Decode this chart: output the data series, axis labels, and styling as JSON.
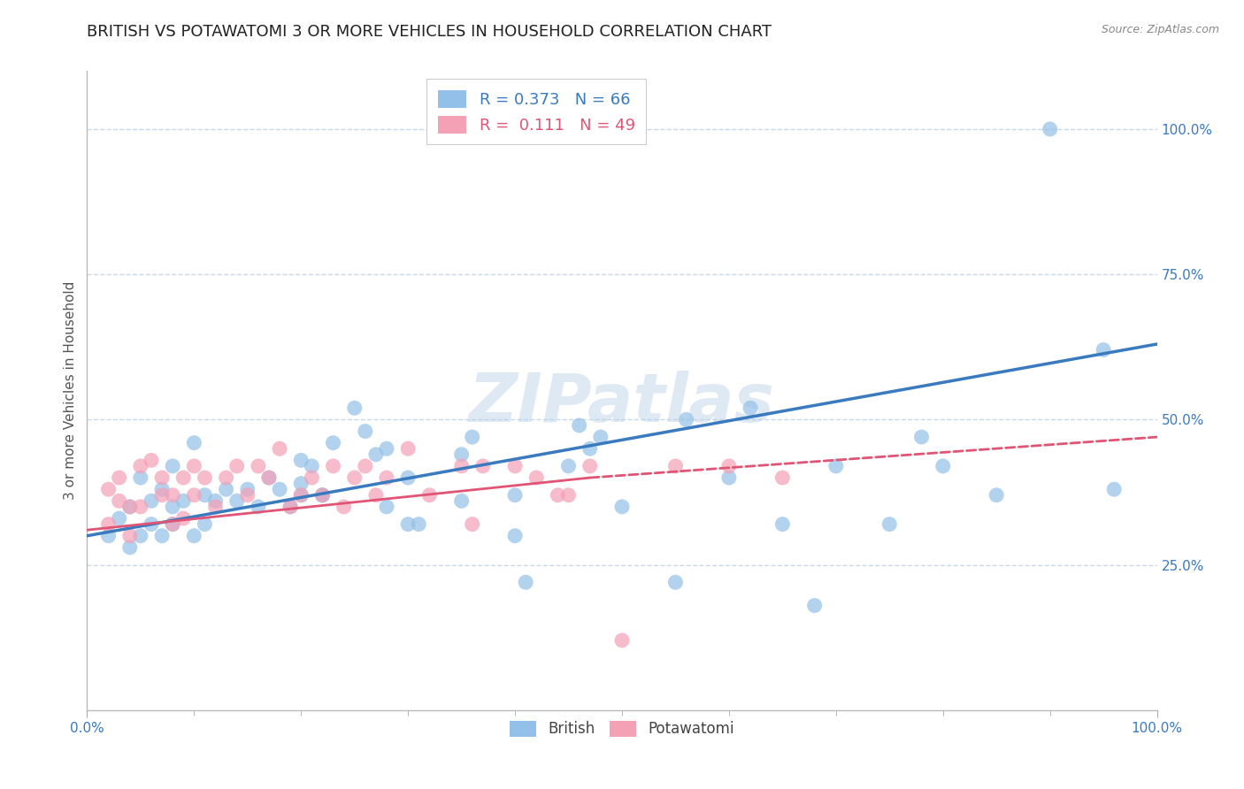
{
  "title": "BRITISH VS POTAWATOMI 3 OR MORE VEHICLES IN HOUSEHOLD CORRELATION CHART",
  "source": "Source: ZipAtlas.com",
  "ylabel": "3 or more Vehicles in Household",
  "watermark": "ZIPatlas",
  "xlim": [
    0,
    100
  ],
  "ylim": [
    0,
    110
  ],
  "ytick_positions": [
    25,
    50,
    75,
    100
  ],
  "british_R": "0.373",
  "british_N": "66",
  "potawatomi_R": "0.111",
  "potawatomi_N": "49",
  "british_color": "#92c0e8",
  "potawatomi_color": "#f4a0b5",
  "british_line_color": "#3a7abf",
  "potawatomi_line_color": "#e05575",
  "british_x": [
    2,
    3,
    4,
    4,
    5,
    5,
    6,
    6,
    7,
    7,
    8,
    8,
    8,
    9,
    10,
    10,
    11,
    11,
    12,
    13,
    14,
    15,
    16,
    17,
    18,
    19,
    20,
    20,
    21,
    22,
    23,
    25,
    26,
    27,
    28,
    30,
    30,
    31,
    35,
    36,
    40,
    40,
    41,
    45,
    46,
    47,
    48,
    55,
    56,
    60,
    62,
    65,
    68,
    70,
    75,
    78,
    80,
    85,
    90,
    95,
    96,
    20,
    22,
    28,
    35,
    50
  ],
  "british_y": [
    30,
    33,
    28,
    35,
    30,
    40,
    32,
    36,
    30,
    38,
    32,
    35,
    42,
    36,
    30,
    46,
    32,
    37,
    36,
    38,
    36,
    38,
    35,
    40,
    38,
    35,
    39,
    43,
    42,
    37,
    46,
    52,
    48,
    44,
    45,
    40,
    32,
    32,
    44,
    47,
    37,
    30,
    22,
    42,
    49,
    45,
    47,
    22,
    50,
    40,
    52,
    32,
    18,
    42,
    32,
    47,
    42,
    37,
    100,
    62,
    38,
    37,
    37,
    35,
    36,
    35
  ],
  "potawatomi_x": [
    2,
    2,
    3,
    3,
    4,
    4,
    5,
    5,
    6,
    7,
    7,
    8,
    8,
    9,
    9,
    10,
    10,
    11,
    12,
    13,
    14,
    15,
    16,
    17,
    18,
    19,
    20,
    21,
    22,
    23,
    24,
    25,
    26,
    27,
    28,
    30,
    32,
    35,
    36,
    37,
    40,
    42,
    44,
    45,
    47,
    50,
    55,
    60,
    65
  ],
  "potawatomi_y": [
    32,
    38,
    36,
    40,
    30,
    35,
    35,
    42,
    43,
    37,
    40,
    32,
    37,
    33,
    40,
    42,
    37,
    40,
    35,
    40,
    42,
    37,
    42,
    40,
    45,
    35,
    37,
    40,
    37,
    42,
    35,
    40,
    42,
    37,
    40,
    45,
    37,
    42,
    32,
    42,
    42,
    40,
    37,
    37,
    42,
    12,
    42,
    42,
    40
  ],
  "british_trend_x0": 0,
  "british_trend_y0": 30,
  "british_trend_x1": 100,
  "british_trend_y1": 63,
  "potawatomi_solid_x0": 0,
  "potawatomi_solid_y0": 31,
  "potawatomi_solid_x1": 47,
  "potawatomi_solid_y1": 40,
  "potawatomi_dash_x0": 47,
  "potawatomi_dash_y0": 40,
  "potawatomi_dash_x1": 100,
  "potawatomi_dash_y1": 47,
  "background_color": "#ffffff",
  "grid_color": "#c8dae8",
  "title_fontsize": 13,
  "axis_label_fontsize": 11,
  "tick_fontsize": 11,
  "legend_fontsize": 13,
  "source_fontsize": 9
}
